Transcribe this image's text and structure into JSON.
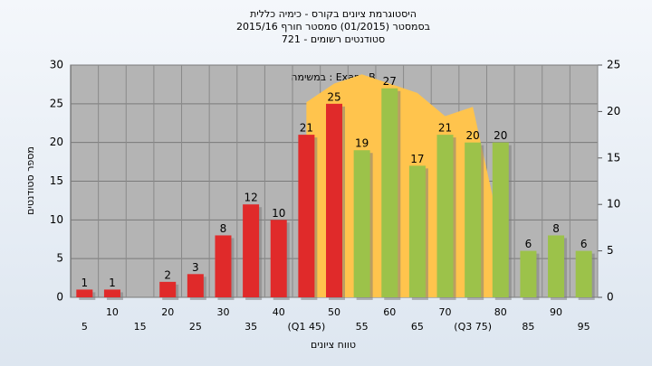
{
  "chart_data": {
    "type": "bar",
    "title_lines": [
      "היסטוגרמת ציונים בקורס - כימיה כללית",
      "בסמסטר  (01/2015)  סמסטר חורף 2015/16",
      "סטודנטים רשומים - 721"
    ],
    "annotation": "במשימה : Exam_B",
    "ylabel": "מספר סטודנטים",
    "xlabel": "טווח ציונים",
    "categories": [
      "5",
      "10",
      "15",
      "20",
      "25",
      "30",
      "35",
      "40",
      "(Q1 45)",
      "50",
      "55",
      "60",
      "65",
      "70",
      "(Q3 75)",
      "80",
      "85",
      "90",
      "95"
    ],
    "values": [
      1,
      1,
      null,
      2,
      3,
      8,
      12,
      10,
      21,
      25,
      19,
      27,
      17,
      21,
      20,
      20,
      6,
      8,
      6
    ],
    "colors": [
      "#e02a2a",
      "#e02a2a",
      null,
      "#e02a2a",
      "#e02a2a",
      "#e02a2a",
      "#e02a2a",
      "#e02a2a",
      "#e02a2a",
      "#e02a2a",
      "#9cc24a",
      "#9cc24a",
      "#9cc24a",
      "#9cc24a",
      "#9cc24a",
      "#9cc24a",
      "#9cc24a",
      "#9cc24a",
      "#9cc24a"
    ],
    "area": {
      "axis": "y2",
      "color": "#ffc44d",
      "values": [
        null,
        null,
        null,
        null,
        null,
        null,
        null,
        null,
        21,
        23,
        24,
        23,
        22,
        19.5,
        20.5,
        7,
        null,
        null,
        null
      ]
    },
    "ylim": [
      0,
      30
    ],
    "yticks": [
      0,
      5,
      10,
      15,
      20,
      25,
      30
    ],
    "y2lim": [
      0,
      25
    ],
    "y2ticks": [
      0,
      5,
      10,
      15,
      20,
      25
    ],
    "grid": true
  }
}
